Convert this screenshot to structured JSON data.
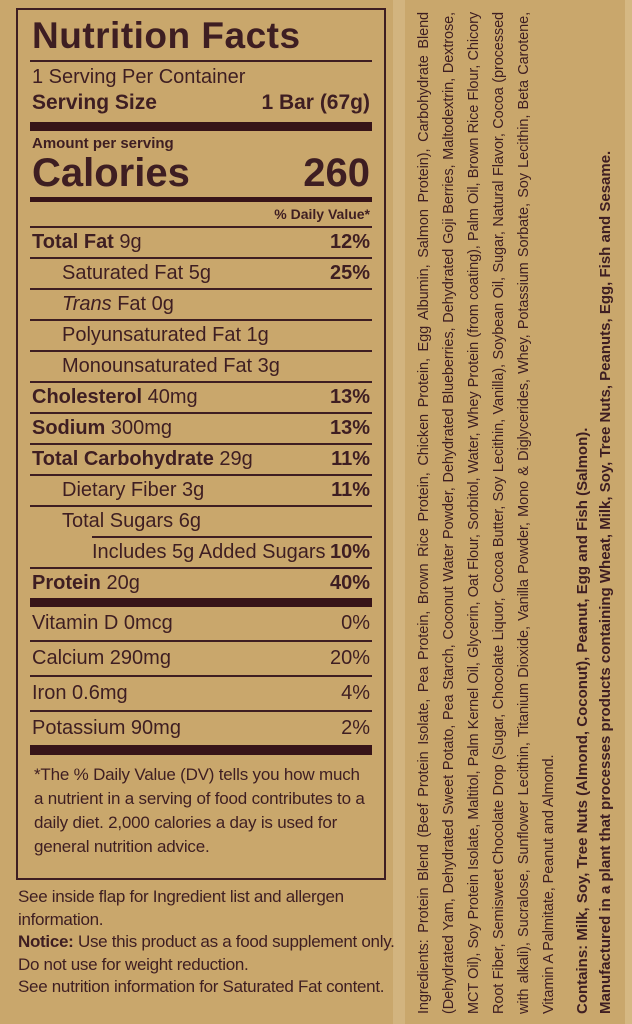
{
  "colors": {
    "background": "#c9a76c",
    "ink": "#3e1e22",
    "bar": "#371418"
  },
  "label": {
    "title": "Nutrition Facts",
    "servings_per_container": "1 Serving Per Container",
    "serving_size": {
      "label": "Serving Size",
      "value": "1 Bar (67g)"
    },
    "amount_per_serving": "Amount per serving",
    "calories": {
      "label": "Calories",
      "value": "260"
    },
    "daily_value_header": "% Daily Value*",
    "nutrients": [
      {
        "parts": [
          {
            "t": "Total Fat",
            "b": true
          },
          {
            "t": " 9g"
          }
        ],
        "dv": "12%",
        "dv_bold": true,
        "indent": 0,
        "sep": "full"
      },
      {
        "parts": [
          {
            "t": "Saturated Fat 5g"
          }
        ],
        "dv": "25%",
        "dv_bold": true,
        "indent": 1,
        "sep": "full"
      },
      {
        "parts": [
          {
            "t": "Trans",
            "i": true
          },
          {
            "t": " Fat 0g"
          }
        ],
        "dv": "",
        "indent": 1,
        "sep": "full"
      },
      {
        "parts": [
          {
            "t": "Polyunsaturated Fat 1g"
          }
        ],
        "dv": "",
        "indent": 1,
        "sep": "full"
      },
      {
        "parts": [
          {
            "t": "Monounsaturated Fat 3g"
          }
        ],
        "dv": "",
        "indent": 1,
        "sep": "full"
      },
      {
        "parts": [
          {
            "t": "Cholesterol",
            "b": true
          },
          {
            "t": " 40mg"
          }
        ],
        "dv": "13%",
        "dv_bold": true,
        "indent": 0,
        "sep": "full"
      },
      {
        "parts": [
          {
            "t": "Sodium",
            "b": true
          },
          {
            "t": " 300mg"
          }
        ],
        "dv": "13%",
        "dv_bold": true,
        "indent": 0,
        "sep": "full"
      },
      {
        "parts": [
          {
            "t": "Total Carbohydrate",
            "b": true
          },
          {
            "t": " 29g"
          }
        ],
        "dv": "11%",
        "dv_bold": true,
        "indent": 0,
        "sep": "full"
      },
      {
        "parts": [
          {
            "t": "Dietary Fiber 3g"
          }
        ],
        "dv": "11%",
        "dv_bold": true,
        "indent": 1,
        "sep": "full"
      },
      {
        "parts": [
          {
            "t": "Total Sugars 6g"
          }
        ],
        "dv": "",
        "indent": 1,
        "sep": "full"
      },
      {
        "parts": [
          {
            "t": "Includes 5g Added Sugars"
          }
        ],
        "dv": "10%",
        "dv_bold": true,
        "indent": 2,
        "sep": "inset"
      },
      {
        "parts": [
          {
            "t": "Protein",
            "b": true
          },
          {
            "t": " 20g"
          }
        ],
        "dv": "40%",
        "dv_bold": true,
        "indent": 0,
        "sep": "full"
      }
    ],
    "vitamins": [
      {
        "parts": [
          {
            "t": "Vitamin D 0mcg"
          }
        ],
        "dv": "0%",
        "dv_bold": false,
        "indent": 0,
        "sep": "none"
      },
      {
        "parts": [
          {
            "t": "Calcium 290mg"
          }
        ],
        "dv": "20%",
        "dv_bold": false,
        "indent": 0,
        "sep": "full"
      },
      {
        "parts": [
          {
            "t": "Iron 0.6mg"
          }
        ],
        "dv": "4%",
        "dv_bold": false,
        "indent": 0,
        "sep": "full"
      },
      {
        "parts": [
          {
            "t": "Potassium 90mg"
          }
        ],
        "dv": "2%",
        "dv_bold": false,
        "indent": 0,
        "sep": "full"
      }
    ],
    "footnote": "*The % Daily Value (DV) tells you how much a nutrient in a serving of food contributes to a daily diet. 2,000 calories a day is used for general nutrition advice."
  },
  "bottom_notes": {
    "flap": "See inside flap for Ingredient list and allergen information.",
    "notice_label": "Notice:",
    "notice_text": "Use this product as a food supplement only. Do not use for weight reduction.",
    "saturated": "See nutrition information for Saturated Fat content."
  },
  "side_panel": {
    "ingredients": "Ingredients: Protein Blend (Beef Protein Isolate, Pea Protein, Brown Rice Protein, Chicken Protein, Egg Albumin, Salmon Protein), Carbohydrate Blend (Dehydrated Yam, Dehydrated Sweet Potato, Pea Starch, Coconut Water Powder, Dehydrated Blueberries, Dehydrated Goji Berries, Maltodextrin, Dextrose, MCT Oil), Soy Protein Isolate, Maltitol, Palm Kernel Oil, Glycerin, Oat Flour, Sorbitol, Water, Whey Protein (from coating), Palm Oil, Brown Rice Flour, Chicory Root Fiber, Semisweet Chocolate Drop (Sugar, Chocolate Liquor, Cocoa Butter, Soy Lecithin, Vanilla), Soybean Oil, Sugar, Natural Flavor, Cocoa (processed with alkali), Sucralose, Sunflower Lecithin, Titanium Dioxide, Vanilla Powder, Mono & Diglycerides, Whey, Potassium Sorbate, Soy Lecithin, Beta Carotene, Vitamin A Palmitate, Peanut and Almond.",
    "contains": "Contains: Milk, Soy, Tree Nuts (Almond, Coconut), Peanut, Egg and Fish (Salmon).",
    "manufactured": "Manufactured in a plant that processes products containing Wheat, Milk, Soy, Tree Nuts, Peanuts, Egg, Fish and Sesame."
  }
}
